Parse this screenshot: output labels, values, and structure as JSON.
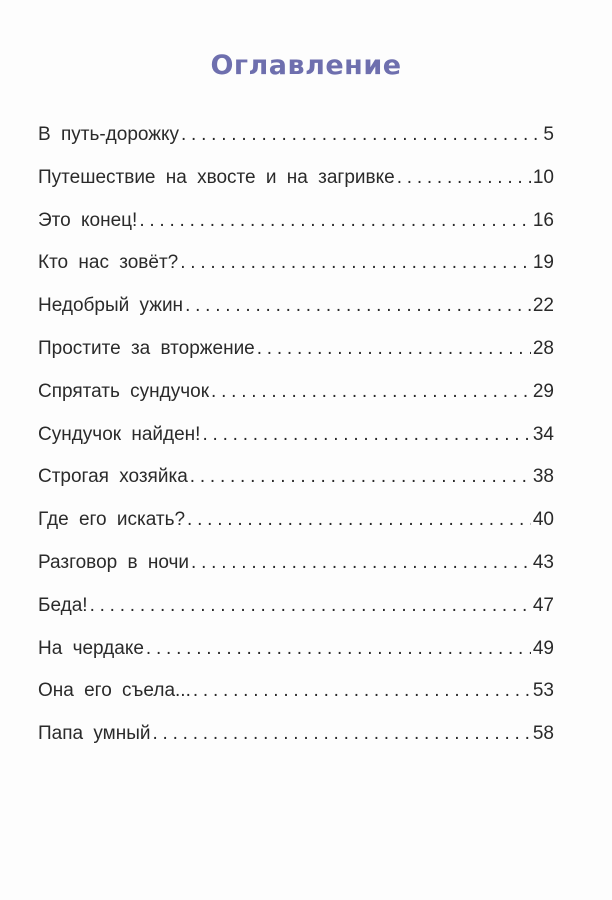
{
  "title": "Оглавление",
  "toc": [
    {
      "title": "В путь-дорожку",
      "page": "5"
    },
    {
      "title": "Путешествие на хвосте и на загривке",
      "page": "10"
    },
    {
      "title": "Это конец!",
      "page": "16"
    },
    {
      "title": "Кто нас зовёт?",
      "page": "19"
    },
    {
      "title": "Недобрый ужин",
      "page": "22"
    },
    {
      "title": "Простите за вторжение",
      "page": "28"
    },
    {
      "title": "Спрятать сундучок",
      "page": "29"
    },
    {
      "title": "Сундучок найден!",
      "page": "34"
    },
    {
      "title": "Строгая хозяйка",
      "page": "38"
    },
    {
      "title": "Где его искать?",
      "page": "40"
    },
    {
      "title": "Разговор в ночи",
      "page": "43"
    },
    {
      "title": "Беда!",
      "page": "47"
    },
    {
      "title": "На чердаке",
      "page": "49"
    },
    {
      "title": "Она его съела...",
      "page": "53"
    },
    {
      "title": "Папа умный",
      "page": "58"
    }
  ],
  "colors": {
    "title": "#6e6fae",
    "text": "#2a2a2a"
  }
}
